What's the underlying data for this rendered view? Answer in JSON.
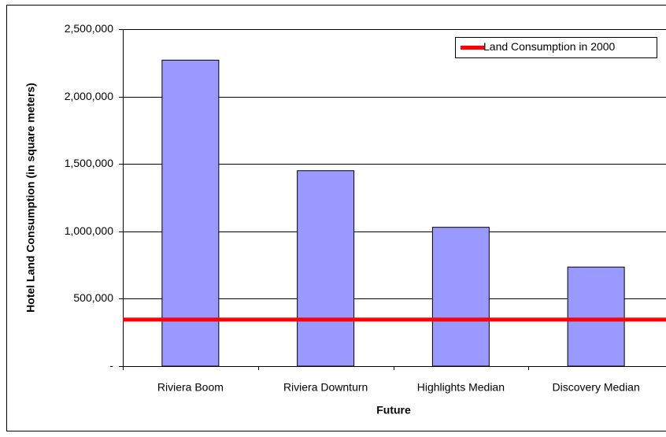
{
  "chart_data": {
    "type": "bar",
    "categories": [
      "Riviera Boom",
      "Riviera Downturn",
      "Highlights Median",
      "Discovery Median"
    ],
    "values": [
      2270000,
      1450000,
      1030000,
      735000
    ],
    "color": "#9999ff",
    "x_label": "Future",
    "y_label": "Hotel Land Consumption (in square meters)",
    "ylim": [
      0,
      2500000
    ],
    "yticks": [
      {
        "value": 0,
        "label": "-"
      },
      {
        "value": 500000,
        "label": "500,000"
      },
      {
        "value": 1000000,
        "label": "1,000,000"
      },
      {
        "value": 1500000,
        "label": "1,500,000"
      },
      {
        "value": 2000000,
        "label": "2,000,000"
      },
      {
        "value": 2500000,
        "label": "2,500,000"
      }
    ],
    "grid": true,
    "reference_line": {
      "name": "Land Consumption in 2000",
      "value": 345000,
      "color": "#ff0000"
    },
    "legend": "upper right"
  }
}
